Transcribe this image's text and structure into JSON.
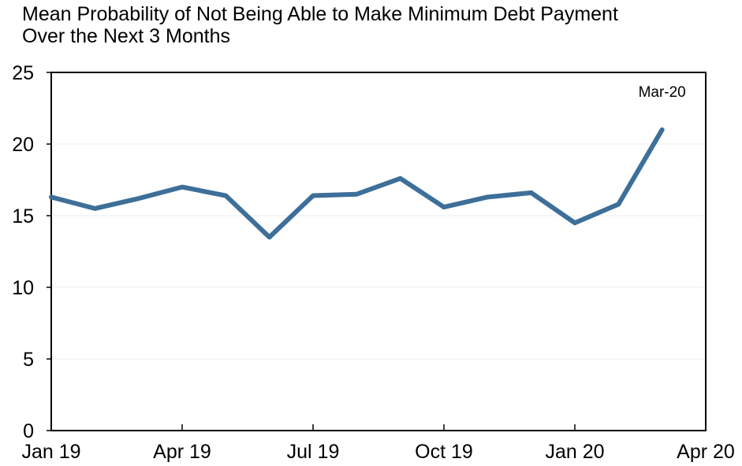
{
  "title_line1": "Mean Probability of Not Being Able to Make Minimum Debt Payment",
  "title_line2": "Over the Next 3 Months",
  "chart_data": {
    "type": "line",
    "title": "Mean Probability of Not Being Able to Make Minimum Debt Payment Over the Next 3 Months",
    "xlabel": "",
    "ylabel": "",
    "x_tick_labels": [
      "Jan 19",
      "Apr 19",
      "Jul 19",
      "Oct 19",
      "Jan 20",
      "Apr 20"
    ],
    "y_tick_labels": [
      "0",
      "5",
      "10",
      "15",
      "20",
      "25"
    ],
    "ylim": [
      0,
      25
    ],
    "grid": "horizontal",
    "annotation": "Mar-20",
    "line_color": "#3d6f99",
    "series": [
      {
        "x": [
          "Jan 19",
          "Feb 19",
          "Mar 19",
          "Apr 19",
          "May 19",
          "Jun 19",
          "Jul 19",
          "Aug 19",
          "Sep 19",
          "Oct 19",
          "Nov 19",
          "Dec 19",
          "Jan 20",
          "Feb 20",
          "Mar 20"
        ],
        "values": [
          16.3,
          15.5,
          16.2,
          17.0,
          16.4,
          13.5,
          16.4,
          16.5,
          17.6,
          15.6,
          16.3,
          16.6,
          14.5,
          15.8,
          21.0
        ]
      }
    ]
  }
}
